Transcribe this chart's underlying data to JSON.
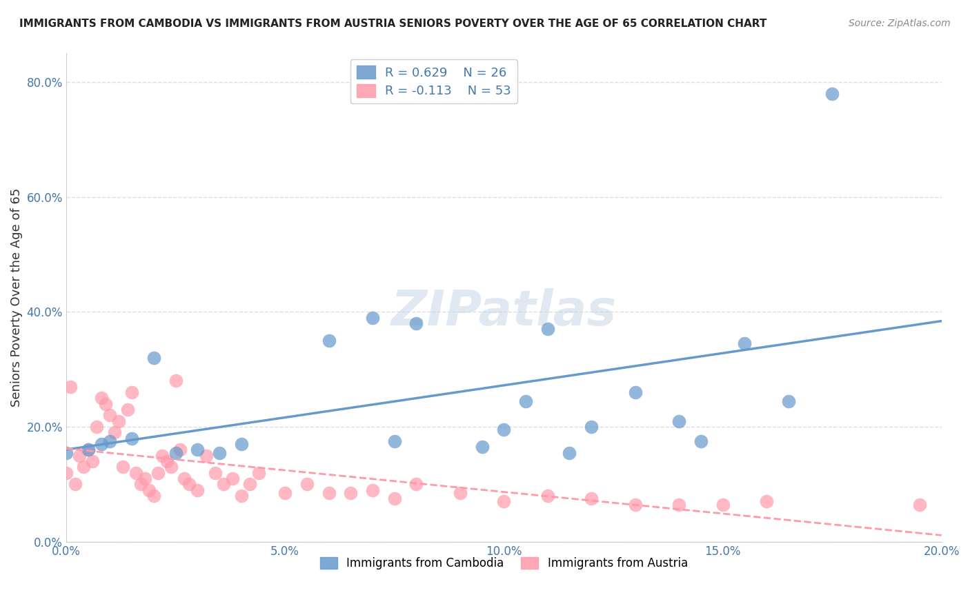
{
  "title": "IMMIGRANTS FROM CAMBODIA VS IMMIGRANTS FROM AUSTRIA SENIORS POVERTY OVER THE AGE OF 65 CORRELATION CHART",
  "source": "Source: ZipAtlas.com",
  "ylabel": "Seniors Poverty Over the Age of 65",
  "xlim": [
    0.0,
    0.2
  ],
  "ylim": [
    0.0,
    0.85
  ],
  "cambodia_R": 0.629,
  "cambodia_N": 26,
  "austria_R": -0.113,
  "austria_N": 53,
  "cambodia_color": "#6699CC",
  "austria_color": "#FF99AA",
  "cambodia_scatter": [
    [
      0.0,
      0.155
    ],
    [
      0.005,
      0.16
    ],
    [
      0.008,
      0.17
    ],
    [
      0.01,
      0.175
    ],
    [
      0.015,
      0.18
    ],
    [
      0.02,
      0.32
    ],
    [
      0.025,
      0.155
    ],
    [
      0.03,
      0.16
    ],
    [
      0.035,
      0.155
    ],
    [
      0.04,
      0.17
    ],
    [
      0.06,
      0.35
    ],
    [
      0.07,
      0.39
    ],
    [
      0.075,
      0.175
    ],
    [
      0.08,
      0.38
    ],
    [
      0.095,
      0.165
    ],
    [
      0.1,
      0.195
    ],
    [
      0.105,
      0.245
    ],
    [
      0.11,
      0.37
    ],
    [
      0.115,
      0.155
    ],
    [
      0.12,
      0.2
    ],
    [
      0.13,
      0.26
    ],
    [
      0.14,
      0.21
    ],
    [
      0.145,
      0.175
    ],
    [
      0.155,
      0.345
    ],
    [
      0.165,
      0.245
    ],
    [
      0.175,
      0.78
    ]
  ],
  "austria_scatter": [
    [
      0.0,
      0.12
    ],
    [
      0.001,
      0.27
    ],
    [
      0.002,
      0.1
    ],
    [
      0.003,
      0.15
    ],
    [
      0.004,
      0.13
    ],
    [
      0.005,
      0.16
    ],
    [
      0.006,
      0.14
    ],
    [
      0.007,
      0.2
    ],
    [
      0.008,
      0.25
    ],
    [
      0.009,
      0.24
    ],
    [
      0.01,
      0.22
    ],
    [
      0.011,
      0.19
    ],
    [
      0.012,
      0.21
    ],
    [
      0.013,
      0.13
    ],
    [
      0.014,
      0.23
    ],
    [
      0.015,
      0.26
    ],
    [
      0.016,
      0.12
    ],
    [
      0.017,
      0.1
    ],
    [
      0.018,
      0.11
    ],
    [
      0.019,
      0.09
    ],
    [
      0.02,
      0.08
    ],
    [
      0.021,
      0.12
    ],
    [
      0.022,
      0.15
    ],
    [
      0.023,
      0.14
    ],
    [
      0.024,
      0.13
    ],
    [
      0.025,
      0.28
    ],
    [
      0.026,
      0.16
    ],
    [
      0.027,
      0.11
    ],
    [
      0.028,
      0.1
    ],
    [
      0.03,
      0.09
    ],
    [
      0.032,
      0.15
    ],
    [
      0.034,
      0.12
    ],
    [
      0.036,
      0.1
    ],
    [
      0.038,
      0.11
    ],
    [
      0.04,
      0.08
    ],
    [
      0.042,
      0.1
    ],
    [
      0.044,
      0.12
    ],
    [
      0.05,
      0.085
    ],
    [
      0.055,
      0.1
    ],
    [
      0.06,
      0.085
    ],
    [
      0.065,
      0.085
    ],
    [
      0.07,
      0.09
    ],
    [
      0.075,
      0.075
    ],
    [
      0.08,
      0.1
    ],
    [
      0.09,
      0.085
    ],
    [
      0.1,
      0.07
    ],
    [
      0.11,
      0.08
    ],
    [
      0.12,
      0.075
    ],
    [
      0.13,
      0.065
    ],
    [
      0.14,
      0.065
    ],
    [
      0.15,
      0.065
    ],
    [
      0.16,
      0.07
    ],
    [
      0.195,
      0.065
    ]
  ],
  "watermark": "ZIPatlas",
  "background_color": "#FFFFFF",
  "grid_color": "#DDDDDD"
}
